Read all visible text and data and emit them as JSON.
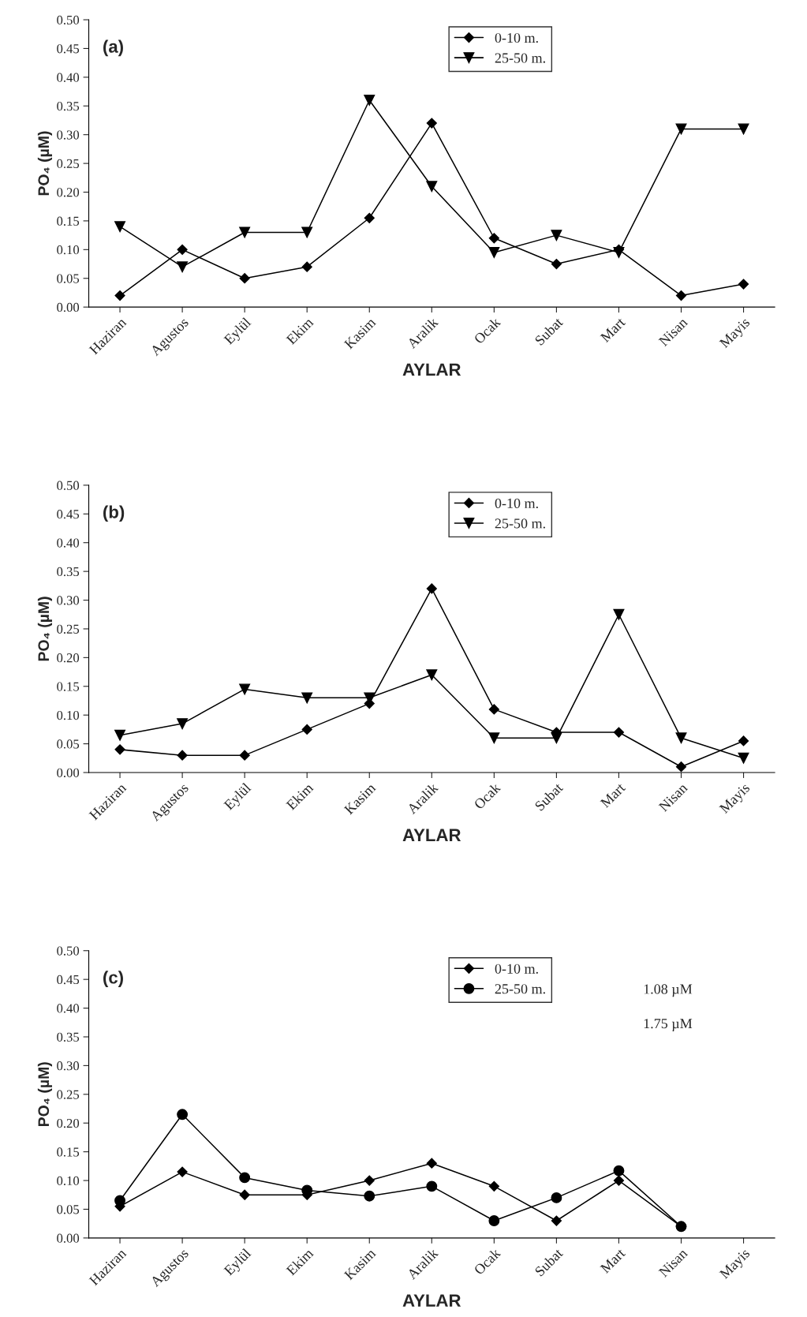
{
  "chart_data": [
    {
      "type": "line",
      "title": "(a)",
      "xlabel": "AYLAR",
      "ylabel": "PO₄ (µM)",
      "categories": [
        "Haziran",
        "Agustos",
        "Eylül",
        "Ekim",
        "Kasim",
        "Aralik",
        "Ocak",
        "Subat",
        "Mart",
        "Nisan",
        "Mayis"
      ],
      "series": [
        {
          "name": "0-10 m.",
          "color": "#000000",
          "marker": "diamond",
          "values": [
            0.02,
            0.1,
            0.05,
            0.07,
            0.155,
            0.32,
            0.12,
            0.075,
            0.1,
            0.02,
            0.04
          ]
        },
        {
          "name": "25-50 m.",
          "color": "#000000",
          "marker": "triangle",
          "values": [
            0.14,
            0.07,
            0.13,
            0.13,
            0.36,
            0.21,
            0.095,
            0.125,
            0.095,
            0.31,
            0.31
          ]
        }
      ],
      "ylim": [
        0,
        0.5
      ],
      "yticks": [
        {
          "value": 0,
          "label": "0.00"
        },
        {
          "value": 0.05,
          "label": "0.05"
        },
        {
          "value": 0.1,
          "label": "0.10"
        },
        {
          "value": 0.15,
          "label": "0.15"
        },
        {
          "value": 0.2,
          "label": "0.20"
        },
        {
          "value": 0.25,
          "label": "0.25"
        },
        {
          "value": 0.3,
          "label": "0.30"
        },
        {
          "value": 0.35,
          "label": "0.35"
        },
        {
          "value": 0.4,
          "label": "0.40"
        },
        {
          "value": 0.45,
          "label": "0.45"
        },
        {
          "value": 0.5,
          "label": "0.50"
        }
      ],
      "grid": false,
      "legend": "top"
    },
    {
      "type": "line",
      "title": "(b)",
      "xlabel": "AYLAR",
      "ylabel": "PO₄ (µM)",
      "categories": [
        "Haziran",
        "Agustos",
        "Eylül",
        "Ekim",
        "Kasim",
        "Aralik",
        "Ocak",
        "Subat",
        "Mart",
        "Nisan",
        "Mayis"
      ],
      "series": [
        {
          "name": "0-10 m.",
          "color": "#000000",
          "marker": "diamond",
          "values": [
            0.04,
            0.03,
            0.03,
            0.075,
            0.12,
            0.32,
            0.11,
            0.07,
            0.07,
            0.01,
            0.055
          ]
        },
        {
          "name": "25-50 m.",
          "color": "#000000",
          "marker": "triangle",
          "values": [
            0.065,
            0.085,
            0.145,
            0.13,
            0.13,
            0.17,
            0.06,
            0.06,
            0.275,
            0.06,
            0.025
          ]
        }
      ],
      "ylim": [
        0,
        0.5
      ],
      "yticks": [
        {
          "value": 0,
          "label": "0.00"
        },
        {
          "value": 0.05,
          "label": "0.05"
        },
        {
          "value": 0.1,
          "label": "0.10"
        },
        {
          "value": 0.15,
          "label": "0.15"
        },
        {
          "value": 0.2,
          "label": "0.20"
        },
        {
          "value": 0.25,
          "label": "0.25"
        },
        {
          "value": 0.3,
          "label": "0.30"
        },
        {
          "value": 0.35,
          "label": "0.35"
        },
        {
          "value": 0.4,
          "label": "0.40"
        },
        {
          "value": 0.45,
          "label": "0.45"
        },
        {
          "value": 0.5,
          "label": "0.50"
        }
      ],
      "grid": false,
      "legend": "top"
    },
    {
      "type": "line",
      "title": "(c)",
      "xlabel": "AYLAR",
      "ylabel": "PO₄ (µM)",
      "categories": [
        "Haziran",
        "Agustos",
        "Eylül",
        "Ekim",
        "Kasim",
        "Aralik",
        "Ocak",
        "Subat",
        "Mart",
        "Nisan",
        "Mayis"
      ],
      "series": [
        {
          "name": "0-10 m.",
          "color": "#000000",
          "marker": "diamond",
          "values": [
            0.055,
            0.115,
            0.075,
            0.075,
            0.1,
            0.13,
            0.09,
            0.03,
            0.1,
            0.02,
            null
          ]
        },
        {
          "name": "25-50 m.",
          "color": "#000000",
          "marker": "circle",
          "values": [
            0.065,
            0.215,
            0.105,
            0.083,
            0.073,
            0.09,
            0.03,
            0.07,
            0.117,
            0.02,
            null
          ]
        }
      ],
      "ylim": [
        0,
        0.5
      ],
      "yticks": [
        {
          "value": 0,
          "label": "0.00"
        },
        {
          "value": 0.05,
          "label": "0.05"
        },
        {
          "value": 0.1,
          "label": "0.10"
        },
        {
          "value": 0.15,
          "label": "0.15"
        },
        {
          "value": 0.2,
          "label": "0.20"
        },
        {
          "value": 0.25,
          "label": "0.25"
        },
        {
          "value": 0.3,
          "label": "0.30"
        },
        {
          "value": 0.35,
          "label": "0.35"
        },
        {
          "value": 0.4,
          "label": "0.40"
        },
        {
          "value": 0.45,
          "label": "0.45"
        },
        {
          "value": 0.5,
          "label": "0.50"
        }
      ],
      "annotations": [
        "1.08 µM",
        "1.75 µM"
      ],
      "grid": false,
      "legend": "top"
    }
  ]
}
